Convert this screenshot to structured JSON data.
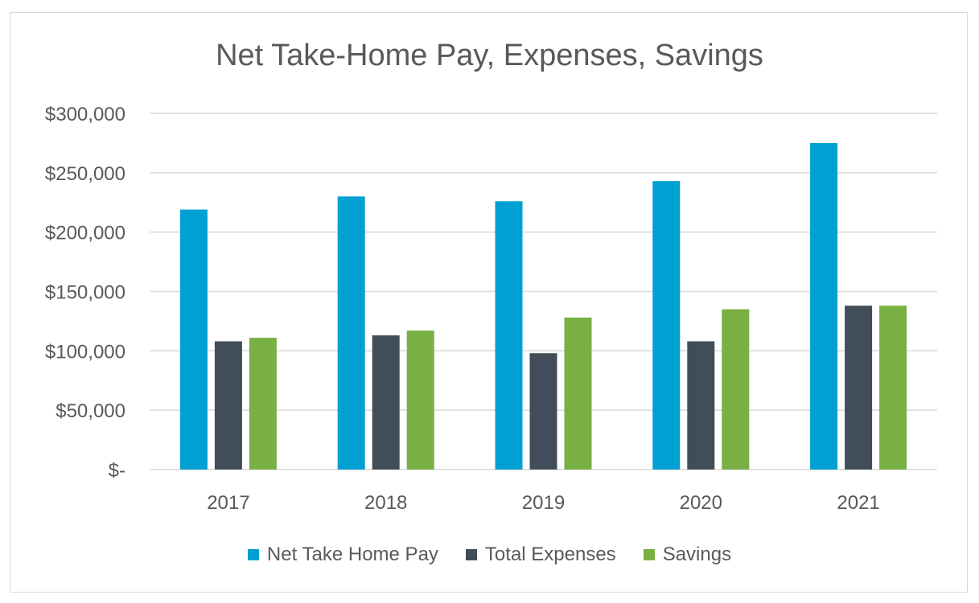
{
  "chart_data": {
    "type": "bar",
    "title": "Net Take-Home Pay, Expenses, Savings",
    "xlabel": "",
    "ylabel": "",
    "categories": [
      "2017",
      "2018",
      "2019",
      "2020",
      "2021"
    ],
    "series": [
      {
        "name": "Net Take Home Pay",
        "color": "#00a0d2",
        "values": [
          219000,
          230000,
          226000,
          243000,
          275000
        ]
      },
      {
        "name": "Total Expenses",
        "color": "#414d58",
        "values": [
          108000,
          113000,
          98000,
          108000,
          138000
        ]
      },
      {
        "name": "Savings",
        "color": "#78b043",
        "values": [
          111000,
          117000,
          128000,
          135000,
          138000
        ]
      }
    ],
    "ylim": [
      0,
      300000
    ],
    "yticks": [
      0,
      50000,
      100000,
      150000,
      200000,
      250000,
      300000
    ],
    "ytick_labels": [
      "$-",
      "$50,000",
      "$100,000",
      "$150,000",
      "$200,000",
      "$250,000",
      "$300,000"
    ],
    "grid": true,
    "legend_position": "bottom"
  }
}
